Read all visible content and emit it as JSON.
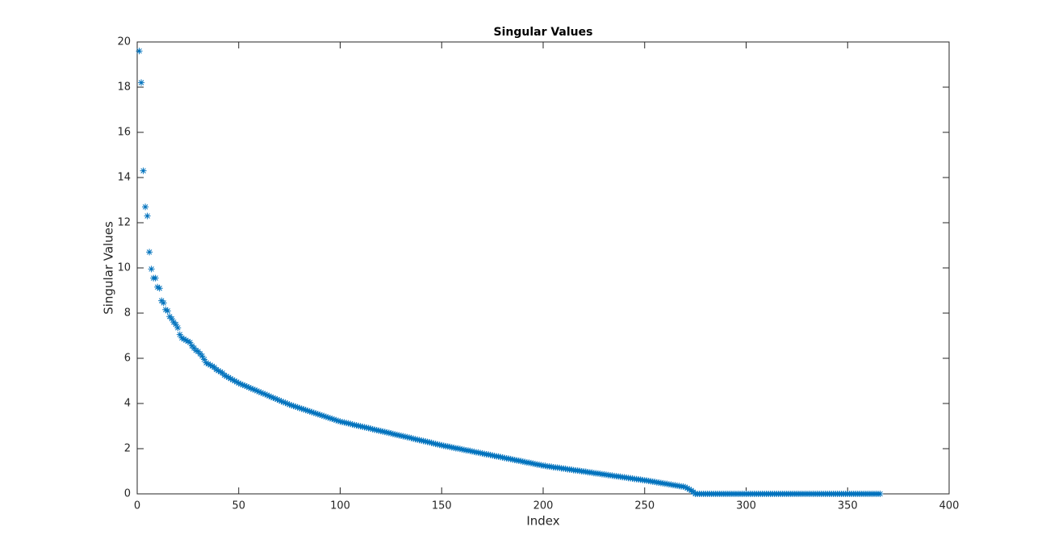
{
  "chart_data": {
    "type": "scatter",
    "title": "Singular Values",
    "x_label": "Index",
    "y_label": "Singular Values",
    "marker": "asterisk",
    "color": "#0072BD",
    "xlim": [
      0,
      400
    ],
    "xticks": [
      0,
      50,
      100,
      150,
      200,
      250,
      300,
      350,
      400
    ],
    "ylim": [
      0,
      20
    ],
    "yticks": [
      0,
      2,
      4,
      6,
      8,
      10,
      12,
      14,
      16,
      18,
      20
    ],
    "x": [
      1,
      2,
      3,
      4,
      5,
      6,
      7,
      8,
      9,
      10,
      11,
      12,
      13,
      14,
      15,
      16,
      17,
      18,
      19,
      20,
      21,
      22,
      23,
      24,
      25,
      26,
      27,
      28,
      29,
      30,
      31,
      32,
      33,
      34,
      35,
      36,
      37,
      38,
      39,
      40,
      41,
      42,
      43,
      44,
      45,
      46,
      47,
      48,
      49,
      50,
      51,
      52,
      53,
      54,
      55,
      56,
      57,
      58,
      59,
      60,
      61,
      62,
      63,
      64,
      65,
      66,
      67,
      68,
      69,
      70,
      71,
      72,
      73,
      74,
      75,
      76,
      77,
      78,
      79,
      80,
      81,
      82,
      83,
      84,
      85,
      86,
      87,
      88,
      89,
      90,
      91,
      92,
      93,
      94,
      95,
      96,
      97,
      98,
      99,
      100,
      101,
      102,
      103,
      104,
      105,
      106,
      107,
      108,
      109,
      110,
      111,
      112,
      113,
      114,
      115,
      116,
      117,
      118,
      119,
      120,
      121,
      122,
      123,
      124,
      125,
      126,
      127,
      128,
      129,
      130,
      131,
      132,
      133,
      134,
      135,
      136,
      137,
      138,
      139,
      140,
      141,
      142,
      143,
      144,
      145,
      146,
      147,
      148,
      149,
      150,
      151,
      152,
      153,
      154,
      155,
      156,
      157,
      158,
      159,
      160,
      161,
      162,
      163,
      164,
      165,
      166,
      167,
      168,
      169,
      170,
      171,
      172,
      173,
      174,
      175,
      176,
      177,
      178,
      179,
      180,
      181,
      182,
      183,
      184,
      185,
      186,
      187,
      188,
      189,
      190,
      191,
      192,
      193,
      194,
      195,
      196,
      197,
      198,
      199,
      200,
      201,
      202,
      203,
      204,
      205,
      206,
      207,
      208,
      209,
      210,
      211,
      212,
      213,
      214,
      215,
      216,
      217,
      218,
      219,
      220,
      221,
      222,
      223,
      224,
      225,
      226,
      227,
      228,
      229,
      230,
      231,
      232,
      233,
      234,
      235,
      236,
      237,
      238,
      239,
      240,
      241,
      242,
      243,
      244,
      245,
      246,
      247,
      248,
      249,
      250,
      251,
      252,
      253,
      254,
      255,
      256,
      257,
      258,
      259,
      260,
      261,
      262,
      263,
      264,
      265,
      266,
      267,
      268,
      269,
      270,
      271,
      272,
      273,
      274,
      275,
      276,
      277,
      278,
      279,
      280,
      281,
      282,
      283,
      284,
      285,
      286,
      287,
      288,
      289,
      290,
      291,
      292,
      293,
      294,
      295,
      296,
      297,
      298,
      299,
      300,
      301,
      302,
      303,
      304,
      305,
      306,
      307,
      308,
      309,
      310,
      311,
      312,
      313,
      314,
      315,
      316,
      317,
      318,
      319,
      320,
      321,
      322,
      323,
      324,
      325,
      326,
      327,
      328,
      329,
      330,
      331,
      332,
      333,
      334,
      335,
      336,
      337,
      338,
      339,
      340,
      341,
      342,
      343,
      344,
      345,
      346,
      347,
      348,
      349,
      350,
      351,
      352,
      353,
      354,
      355,
      356,
      357,
      358,
      359,
      360,
      361,
      362,
      363,
      364,
      365,
      366
    ],
    "values": [
      19.6,
      18.2,
      14.3,
      12.7,
      12.3,
      10.7,
      9.95,
      9.55,
      9.55,
      9.15,
      9.1,
      8.55,
      8.45,
      8.15,
      8.1,
      7.85,
      7.75,
      7.6,
      7.5,
      7.35,
      7.05,
      6.9,
      6.85,
      6.8,
      6.75,
      6.7,
      6.55,
      6.45,
      6.35,
      6.3,
      6.2,
      6.1,
      5.95,
      5.8,
      5.75,
      5.7,
      5.65,
      5.6,
      5.5,
      5.45,
      5.4,
      5.35,
      5.25,
      5.2,
      5.15,
      5.1,
      5.05,
      5.0,
      4.95,
      4.9,
      4.86,
      4.82,
      4.79,
      4.75,
      4.71,
      4.67,
      4.63,
      4.6,
      4.56,
      4.52,
      4.48,
      4.44,
      4.41,
      4.37,
      4.33,
      4.29,
      4.25,
      4.22,
      4.18,
      4.14,
      4.1,
      4.06,
      4.03,
      3.99,
      3.95,
      3.92,
      3.89,
      3.86,
      3.83,
      3.8,
      3.77,
      3.74,
      3.71,
      3.68,
      3.65,
      3.62,
      3.59,
      3.56,
      3.53,
      3.5,
      3.47,
      3.44,
      3.41,
      3.38,
      3.35,
      3.32,
      3.29,
      3.26,
      3.23,
      3.2,
      3.18,
      3.16,
      3.14,
      3.12,
      3.1,
      3.07,
      3.05,
      3.03,
      3.01,
      2.99,
      2.97,
      2.95,
      2.93,
      2.91,
      2.89,
      2.86,
      2.84,
      2.82,
      2.8,
      2.78,
      2.76,
      2.74,
      2.72,
      2.7,
      2.68,
      2.65,
      2.63,
      2.61,
      2.59,
      2.57,
      2.55,
      2.53,
      2.51,
      2.49,
      2.47,
      2.44,
      2.42,
      2.4,
      2.38,
      2.36,
      2.34,
      2.32,
      2.3,
      2.28,
      2.26,
      2.23,
      2.21,
      2.19,
      2.17,
      2.15,
      2.13,
      2.11,
      2.1,
      2.08,
      2.06,
      2.04,
      2.02,
      2.01,
      1.99,
      1.97,
      1.95,
      1.93,
      1.92,
      1.9,
      1.88,
      1.86,
      1.84,
      1.83,
      1.81,
      1.79,
      1.77,
      1.75,
      1.74,
      1.72,
      1.7,
      1.68,
      1.66,
      1.65,
      1.63,
      1.61,
      1.59,
      1.57,
      1.56,
      1.54,
      1.52,
      1.5,
      1.48,
      1.47,
      1.45,
      1.43,
      1.41,
      1.39,
      1.38,
      1.36,
      1.34,
      1.32,
      1.3,
      1.29,
      1.27,
      1.25,
      1.24,
      1.22,
      1.21,
      1.2,
      1.18,
      1.17,
      1.16,
      1.15,
      1.13,
      1.12,
      1.11,
      1.09,
      1.08,
      1.07,
      1.05,
      1.04,
      1.03,
      1.02,
      1.0,
      0.99,
      0.98,
      0.96,
      0.95,
      0.94,
      0.92,
      0.91,
      0.9,
      0.89,
      0.87,
      0.86,
      0.85,
      0.83,
      0.82,
      0.81,
      0.79,
      0.78,
      0.77,
      0.76,
      0.74,
      0.73,
      0.72,
      0.7,
      0.69,
      0.68,
      0.66,
      0.65,
      0.64,
      0.63,
      0.61,
      0.6,
      0.59,
      0.57,
      0.56,
      0.54,
      0.53,
      0.51,
      0.5,
      0.48,
      0.47,
      0.45,
      0.44,
      0.42,
      0.41,
      0.39,
      0.38,
      0.36,
      0.35,
      0.33,
      0.32,
      0.3,
      0.25,
      0.2,
      0.15,
      0.08,
      0,
      0,
      0,
      0,
      0,
      0,
      0,
      0,
      0,
      0,
      0,
      0,
      0,
      0,
      0,
      0,
      0,
      0,
      0,
      0,
      0,
      0,
      0,
      0,
      0,
      0,
      0,
      0,
      0,
      0,
      0,
      0,
      0,
      0,
      0,
      0,
      0,
      0,
      0,
      0,
      0,
      0,
      0,
      0,
      0,
      0,
      0,
      0,
      0,
      0,
      0,
      0,
      0,
      0,
      0,
      0,
      0,
      0,
      0,
      0,
      0,
      0,
      0,
      0,
      0,
      0,
      0,
      0,
      0,
      0,
      0,
      0,
      0,
      0,
      0,
      0,
      0,
      0,
      0,
      0,
      0,
      0,
      0,
      0,
      0,
      0,
      0,
      0,
      0,
      0,
      0,
      0
    ]
  }
}
